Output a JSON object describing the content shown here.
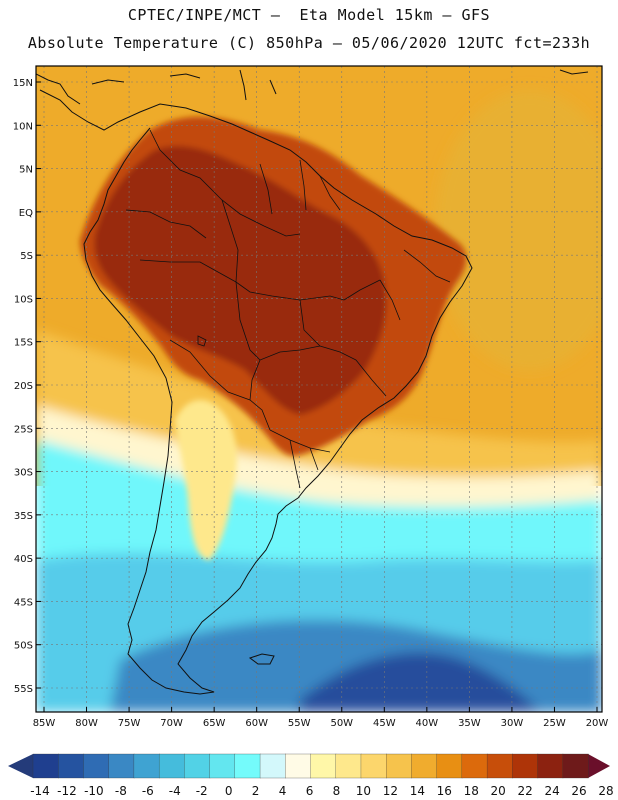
{
  "title_line1": "CPTEC/INPE/MCT –  Eta Model 15km – GFS",
  "title_line2": "Absolute Temperature (C) 850hPa – 05/06/2020 12UTC fct=233h",
  "lat_labels": [
    "15N",
    "10N",
    "5N",
    "EQ",
    "5S",
    "10S",
    "15S",
    "20S",
    "25S",
    "30S",
    "35S",
    "40S",
    "45S",
    "50S",
    "55S"
  ],
  "lon_labels": [
    "85W",
    "80W",
    "75W",
    "70W",
    "65W",
    "60W",
    "55W",
    "50W",
    "45W",
    "40W",
    "35W",
    "30W",
    "25W",
    "20W"
  ],
  "colorbar": {
    "labels": [
      "-14",
      "-12",
      "-10",
      "-8",
      "-6",
      "-4",
      "-2",
      "0",
      "2",
      "4",
      "6",
      "8",
      "10",
      "12",
      "14",
      "16",
      "18",
      "20",
      "22",
      "24",
      "26",
      "28"
    ],
    "colors": [
      "#1f3f8f",
      "#2553a0",
      "#2f6cb4",
      "#3a88c4",
      "#3fa3d2",
      "#45bcdc",
      "#52d2e6",
      "#63e6ef",
      "#74fbfb",
      "#d3f8fb",
      "#fffbe6",
      "#fff7a8",
      "#fee88c",
      "#fcd66c",
      "#f6c34c",
      "#f0ac2e",
      "#e88f13",
      "#dc6a0c",
      "#c74e0a",
      "#ae3408",
      "#8c2210",
      "#6e1a1a"
    ],
    "left_arrow_color": "#243b7a",
    "right_arrow_color": "#6a0f2a"
  },
  "map": {
    "ocean_north": "#eeab2a",
    "continent_hot": "#c24a0b",
    "continent_core": "#992a0c",
    "south_cold": "#57ccea",
    "cyan": "#6ff7fb",
    "deep_south": "#284e9c",
    "cream": "#fff6cf"
  }
}
